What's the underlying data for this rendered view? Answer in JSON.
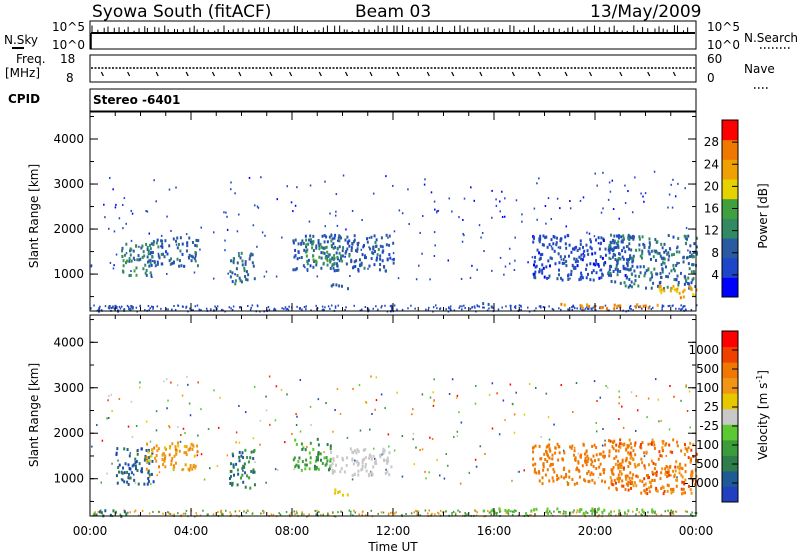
{
  "header": {
    "station": "Syowa South (fitACF)",
    "beam": "Beam 03",
    "date": "13/May/2009"
  },
  "top_panels": {
    "nsky_label": "N.Sky",
    "nsky_ticks": [
      "10^5",
      "10^0"
    ],
    "nsearch_label": "N.Search",
    "nsearch_ticks": [
      "10^5",
      "10^0"
    ],
    "freq_label": "Freq.",
    "freq_unit": "[MHz]",
    "freq_ticks": [
      "18",
      "8"
    ],
    "nave_label": "Nave",
    "nave_ticks": [
      "60",
      "0"
    ],
    "cpid_label": "CPID",
    "cpid_value": "Stereo -6401"
  },
  "colors": {
    "power_scale": [
      "#0000ff",
      "#1e46c8",
      "#2a5aa0",
      "#328a64",
      "#40a040",
      "#e6d200",
      "#f0a000",
      "#f07800",
      "#ff0000"
    ],
    "velocity_scale": [
      "#2040c0",
      "#1e5a96",
      "#2e7d4a",
      "#3c9c3c",
      "#5cc832",
      "#c8c8c8",
      "#e6c800",
      "#f09614",
      "#f07800",
      "#f04000",
      "#ff0000"
    ]
  },
  "chart_data": [
    {
      "type": "heatmap",
      "name": "power-panel",
      "ylabel": "Slant Range [km]",
      "xlabel": "",
      "x_ticks": [
        "00:00",
        "04:00",
        "08:00",
        "12:00",
        "16:00",
        "20:00",
        "00:00"
      ],
      "y_ticks": [
        "1000",
        "2000",
        "3000",
        "4000"
      ],
      "xlim_hours": [
        0,
        24
      ],
      "ylim_km": [
        180,
        4600
      ],
      "colorbar": {
        "label": "Power [dB]",
        "ticks": [
          "4",
          "8",
          "12",
          "16",
          "20",
          "24",
          "28"
        ],
        "range": [
          0,
          32
        ]
      },
      "clusters": [
        {
          "t0": 0.1,
          "t1": 1.8,
          "r0": 200,
          "r1": 330,
          "value": 6,
          "spread": 6
        },
        {
          "t0": 1.2,
          "t1": 2.5,
          "r0": 1000,
          "r1": 1700,
          "value": 12,
          "spread": 6
        },
        {
          "t0": 2.2,
          "t1": 4.3,
          "r0": 1200,
          "r1": 1850,
          "value": 9,
          "spread": 6
        },
        {
          "t0": 5.5,
          "t1": 6.5,
          "r0": 800,
          "r1": 1500,
          "value": 10,
          "spread": 6
        },
        {
          "t0": 8.0,
          "t1": 12.0,
          "r0": 1100,
          "r1": 1900,
          "value": 8,
          "spread": 6
        },
        {
          "t0": 8.5,
          "t1": 10.0,
          "r0": 1200,
          "r1": 1800,
          "value": 14,
          "spread": 6
        },
        {
          "t0": 9.5,
          "t1": 10.2,
          "r0": 650,
          "r1": 800,
          "value": 8,
          "spread": 3
        },
        {
          "t0": 15.5,
          "t1": 16.0,
          "r0": 300,
          "r1": 420,
          "value": 10,
          "spread": 4
        },
        {
          "t0": 17.5,
          "t1": 21.5,
          "r0": 900,
          "r1": 1900,
          "value": 6,
          "spread": 6
        },
        {
          "t0": 20.5,
          "t1": 24.0,
          "r0": 700,
          "r1": 1900,
          "value": 10,
          "spread": 8
        },
        {
          "t0": 22.5,
          "t1": 24.0,
          "r0": 500,
          "r1": 800,
          "value": 22,
          "spread": 6
        },
        {
          "t0": 18.5,
          "t1": 22.5,
          "r0": 260,
          "r1": 370,
          "value": 25,
          "spread": 4
        }
      ]
    },
    {
      "type": "heatmap",
      "name": "velocity-panel",
      "ylabel": "Slant Range [km]",
      "xlabel": "Time UT",
      "x_ticks": [
        "00:00",
        "04:00",
        "08:00",
        "12:00",
        "16:00",
        "20:00",
        "00:00"
      ],
      "y_ticks": [
        "1000",
        "2000",
        "3000",
        "4000"
      ],
      "xlim_hours": [
        0,
        24
      ],
      "ylim_km": [
        180,
        4600
      ],
      "colorbar": {
        "label": "Velocity [m s",
        "label_exponent": "-1",
        "label_close": "]",
        "ticks": [
          "1000",
          "500",
          "100",
          "25",
          "-25",
          "-100",
          "-500",
          "-1000"
        ]
      },
      "clusters": [
        {
          "t0": 0.1,
          "t1": 1.8,
          "r0": 200,
          "r1": 330,
          "value": 2,
          "spread": 2
        },
        {
          "t0": 1.0,
          "t1": 2.5,
          "r0": 900,
          "r1": 1700,
          "value": 1,
          "spread": 2
        },
        {
          "t0": 2.2,
          "t1": 4.3,
          "r0": 1200,
          "r1": 1850,
          "value": 7,
          "spread": 2
        },
        {
          "t0": 5.5,
          "t1": 6.5,
          "r0": 800,
          "r1": 1700,
          "value": 2,
          "spread": 2
        },
        {
          "t0": 8.0,
          "t1": 9.5,
          "r0": 1200,
          "r1": 1900,
          "value": 3,
          "spread": 2
        },
        {
          "t0": 9.5,
          "t1": 12.0,
          "r0": 1100,
          "r1": 1700,
          "value": 5,
          "spread": 1
        },
        {
          "t0": 9.5,
          "t1": 10.2,
          "r0": 650,
          "r1": 800,
          "value": 6,
          "spread": 1
        },
        {
          "t0": 15.5,
          "t1": 18.5,
          "r0": 260,
          "r1": 370,
          "value": 4,
          "spread": 1
        },
        {
          "t0": 17.5,
          "t1": 21.5,
          "r0": 900,
          "r1": 1800,
          "value": 8,
          "spread": 1
        },
        {
          "t0": 20.5,
          "t1": 24.0,
          "r0": 700,
          "r1": 1900,
          "value": 8,
          "spread": 2
        },
        {
          "t0": 18.5,
          "t1": 22.5,
          "r0": 260,
          "r1": 370,
          "value": 4,
          "spread": 1
        }
      ]
    }
  ]
}
